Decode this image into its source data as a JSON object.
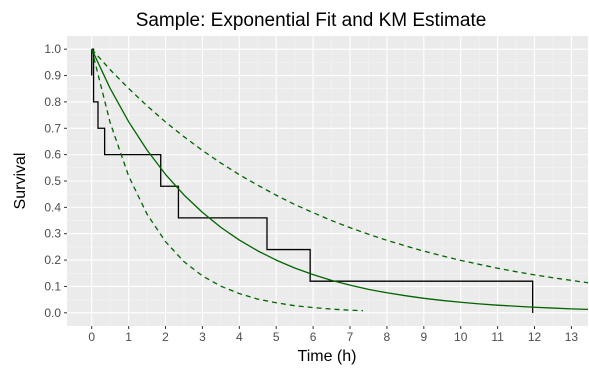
{
  "chart_data": {
    "type": "line",
    "title": "Sample: Exponential Fit and KM Estimate",
    "xlabel": "Time (h)",
    "ylabel": "Survival",
    "xlim": [
      -0.67,
      13.45
    ],
    "ylim": [
      -0.05,
      1.05
    ],
    "x_ticks": [
      0,
      1,
      2,
      3,
      4,
      5,
      6,
      7,
      8,
      9,
      10,
      11,
      12,
      13
    ],
    "y_ticks": [
      0.0,
      0.1,
      0.2,
      0.3,
      0.4,
      0.5,
      0.6,
      0.7,
      0.8,
      0.9,
      1.0
    ],
    "grid": true,
    "legend": "none",
    "series": [
      {
        "kind": "step",
        "color": "#000000",
        "x": [
          0,
          0.05,
          0.17,
          0.35,
          1.8,
          1.87,
          2.35,
          4.75,
          5.92,
          11.95
        ],
        "y": [
          1.0,
          0.8,
          0.7,
          0.6,
          0.6,
          0.48,
          0.36,
          0.24,
          0.12,
          0.0
        ],
        "initial_vertical": [
          0.9,
          1.0
        ]
      },
      {
        "kind": "curve",
        "style": "solid",
        "color": "#006400",
        "x": [
          0,
          0.5,
          1,
          1.5,
          2,
          2.5,
          3,
          3.5,
          4,
          4.5,
          5,
          5.5,
          6,
          6.5,
          7,
          7.5,
          8,
          8.5,
          9,
          9.5,
          10,
          10.5,
          11,
          11.5,
          12,
          12.5,
          13,
          13.45
        ],
        "y": [
          1.0,
          0.851,
          0.725,
          0.617,
          0.525,
          0.447,
          0.381,
          0.324,
          0.276,
          0.235,
          0.2,
          0.17,
          0.145,
          0.123,
          0.105,
          0.089,
          0.076,
          0.065,
          0.055,
          0.047,
          0.04,
          0.034,
          0.029,
          0.025,
          0.021,
          0.018,
          0.015,
          0.013
        ]
      },
      {
        "kind": "curve",
        "style": "dashed",
        "color": "#006400",
        "x": [
          0,
          0.5,
          1,
          1.5,
          2,
          2.5,
          3,
          3.5,
          4,
          4.5,
          5,
          5.5,
          6,
          6.5,
          7,
          7.5,
          8,
          8.5,
          9,
          9.5,
          10,
          10.5,
          11,
          11.5,
          12,
          12.5,
          13,
          13.45
        ],
        "y": [
          1.0,
          0.922,
          0.851,
          0.785,
          0.724,
          0.668,
          0.616,
          0.568,
          0.524,
          0.484,
          0.446,
          0.411,
          0.38,
          0.35,
          0.323,
          0.298,
          0.275,
          0.254,
          0.234,
          0.216,
          0.199,
          0.184,
          0.169,
          0.156,
          0.144,
          0.133,
          0.123,
          0.114
        ]
      },
      {
        "kind": "curve",
        "style": "dashed",
        "color": "#006400",
        "x": [
          0,
          0.5,
          1,
          1.5,
          2,
          2.5,
          3,
          3.5,
          4,
          4.5,
          5,
          5.5,
          6,
          6.5,
          7,
          7.35
        ],
        "y": [
          1.0,
          0.721,
          0.519,
          0.374,
          0.27,
          0.194,
          0.14,
          0.101,
          0.073,
          0.052,
          0.038,
          0.027,
          0.02,
          0.014,
          0.01,
          0.008
        ]
      }
    ]
  }
}
